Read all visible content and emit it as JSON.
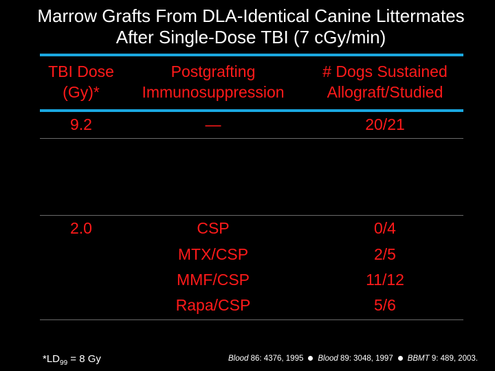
{
  "title": {
    "line1": "Marrow Grafts From DLA-Identical Canine Littermates",
    "line2": "After Single-Dose TBI (7 cGy/min)"
  },
  "table": {
    "headers": {
      "dose": [
        "TBI Dose",
        "(Gy)*"
      ],
      "immuno": [
        "Postgrafting",
        "Immunosuppression"
      ],
      "dogs": [
        "# Dogs Sustained",
        "Allograft/Studied"
      ]
    },
    "rows": [
      {
        "dose": "9.2",
        "immuno": "—",
        "dogs": "20/21"
      },
      {
        "dose": "2.0",
        "immuno": "CSP",
        "dogs": "0/4"
      },
      {
        "dose": "",
        "immuno": "MTX/CSP",
        "dogs": "2/5"
      },
      {
        "dose": "",
        "immuno": "MMF/CSP",
        "dogs": "11/12"
      },
      {
        "dose": "",
        "immuno": "Rapa/CSP",
        "dogs": "5/6"
      }
    ]
  },
  "footnote": {
    "prefix": "*LD",
    "sub": "99",
    "suffix": " = 8 Gy"
  },
  "references": [
    {
      "journal": "Blood",
      "citation": " 86: 4376, 1995"
    },
    {
      "journal": "Blood",
      "citation": " 89: 3048, 1997"
    },
    {
      "journal": "BBMT",
      "citation": " 9: 489, 2003."
    }
  ],
  "colors": {
    "text_red": "#ff1a1a",
    "rule_blue": "#1aa7e0",
    "background": "#000000"
  }
}
